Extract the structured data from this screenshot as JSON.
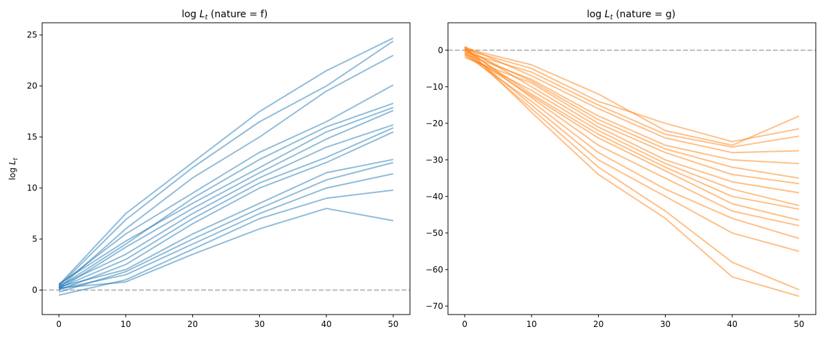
{
  "chart_data": [
    {
      "type": "line",
      "title_prefix": "log",
      "title_var": "L",
      "title_sub": "t",
      "title_suffix": " (nature = f)",
      "ylabel_prefix": "log",
      "ylabel_var": "L",
      "ylabel_sub": "t",
      "xlabel": "",
      "xlim": [
        -2.5,
        52.5
      ],
      "ylim": [
        -2.4,
        26.2
      ],
      "xticks": [
        0,
        10,
        20,
        30,
        40,
        50
      ],
      "yticks": [
        0,
        5,
        10,
        15,
        20,
        25
      ],
      "reference_line": {
        "y": 0,
        "style": "dashed",
        "color": "#bbbbbb"
      },
      "line_color": "#1f77b4",
      "alpha": 0.5,
      "x": [
        0,
        10,
        20,
        30,
        40,
        50
      ],
      "series": [
        {
          "values": [
            0.5,
            7.5,
            12.5,
            17.5,
            21.5,
            24.7
          ]
        },
        {
          "values": [
            0.4,
            6.9,
            12.0,
            16.5,
            20.0,
            24.4
          ]
        },
        {
          "values": [
            0.2,
            6.0,
            11.0,
            15.0,
            19.5,
            23.0
          ]
        },
        {
          "values": [
            0.5,
            5.5,
            9.5,
            13.5,
            16.5,
            20.1
          ]
        },
        {
          "values": [
            0.3,
            4.5,
            9.0,
            12.8,
            16.0,
            18.3
          ]
        },
        {
          "values": [
            0.6,
            4.8,
            8.5,
            12.0,
            15.5,
            17.9
          ]
        },
        {
          "values": [
            0.1,
            4.2,
            8.0,
            11.5,
            14.8,
            17.6
          ]
        },
        {
          "values": [
            0.4,
            3.5,
            7.5,
            11.0,
            14.0,
            16.2
          ]
        },
        {
          "values": [
            0.2,
            3.0,
            7.0,
            10.5,
            13.0,
            15.9
          ]
        },
        {
          "values": [
            0.0,
            2.5,
            6.5,
            10.0,
            12.5,
            15.5
          ]
        },
        {
          "values": [
            0.3,
            2.0,
            5.5,
            8.5,
            11.5,
            12.8
          ]
        },
        {
          "values": [
            -0.2,
            1.8,
            5.0,
            8.0,
            10.8,
            12.5
          ]
        },
        {
          "values": [
            0.1,
            1.5,
            4.5,
            7.5,
            10.0,
            11.4
          ]
        },
        {
          "values": [
            -0.5,
            1.0,
            4.0,
            7.0,
            9.0,
            9.8
          ]
        },
        {
          "values": [
            0.2,
            0.8,
            3.5,
            6.0,
            8.0,
            6.8
          ]
        }
      ]
    },
    {
      "type": "line",
      "title_prefix": "log",
      "title_var": "L",
      "title_sub": "t",
      "title_suffix": " (nature = g)",
      "xlabel": "",
      "ylabel": "",
      "xlim": [
        -2.5,
        52.5
      ],
      "ylim": [
        -72.3,
        7.5
      ],
      "xticks": [
        0,
        10,
        20,
        30,
        40,
        50
      ],
      "yticks": [
        0,
        -10,
        -20,
        -30,
        -40,
        -50,
        -60,
        -70
      ],
      "reference_line": {
        "y": 0,
        "style": "dashed",
        "color": "#bbbbbb"
      },
      "line_color": "#ff7f0e",
      "alpha": 0.5,
      "x": [
        0,
        10,
        20,
        30,
        40,
        50
      ],
      "series": [
        {
          "values": [
            0.5,
            -4.0,
            -12.0,
            -22.0,
            -26.0,
            -18.0
          ]
        },
        {
          "values": [
            0.2,
            -5.0,
            -14.0,
            -20.0,
            -25.0,
            -21.5
          ]
        },
        {
          "values": [
            -0.5,
            -6.0,
            -15.0,
            -23.0,
            -26.5,
            -23.5
          ]
        },
        {
          "values": [
            1.0,
            -7.0,
            -16.0,
            -24.0,
            -28.0,
            -27.5
          ]
        },
        {
          "values": [
            -1.0,
            -8.0,
            -18.0,
            -26.0,
            -30.0,
            -31.0
          ]
        },
        {
          "values": [
            0.0,
            -8.5,
            -19.0,
            -27.0,
            -32.0,
            -35.0
          ]
        },
        {
          "values": [
            -2.0,
            -9.0,
            -20.0,
            -28.0,
            -34.0,
            -36.5
          ]
        },
        {
          "values": [
            0.8,
            -10.0,
            -21.0,
            -30.0,
            -36.0,
            -39.0
          ]
        },
        {
          "values": [
            -1.5,
            -11.0,
            -22.0,
            -31.0,
            -38.0,
            -42.5
          ]
        },
        {
          "values": [
            0.3,
            -12.0,
            -23.0,
            -32.0,
            -40.0,
            -43.5
          ]
        },
        {
          "values": [
            -0.8,
            -12.5,
            -24.0,
            -33.0,
            -42.0,
            -46.5
          ]
        },
        {
          "values": [
            0.6,
            -13.0,
            -26.0,
            -35.0,
            -44.0,
            -48.0
          ]
        },
        {
          "values": [
            -1.2,
            -14.0,
            -28.0,
            -38.0,
            -46.0,
            -51.5
          ]
        },
        {
          "values": [
            0.1,
            -15.0,
            -30.0,
            -40.0,
            -50.0,
            -55.0
          ]
        },
        {
          "values": [
            -0.4,
            -16.0,
            -32.0,
            -44.0,
            -58.0,
            -65.5
          ]
        },
        {
          "values": [
            0.9,
            -17.0,
            -34.0,
            -46.0,
            -62.0,
            -67.3
          ]
        }
      ]
    }
  ]
}
